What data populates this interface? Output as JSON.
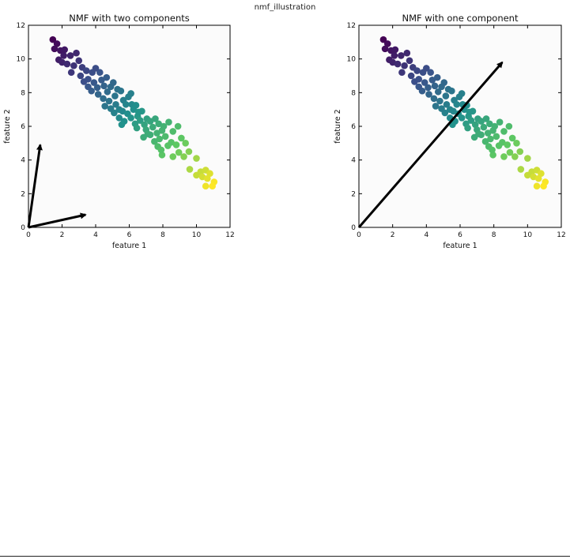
{
  "page": {
    "title": "nmf_illustration"
  },
  "chart_data": [
    {
      "type": "scatter",
      "title": "NMF with two components",
      "xlabel": "feature 1",
      "ylabel": "feature 2",
      "xlim": [
        0,
        12
      ],
      "ylim": [
        0,
        12
      ],
      "xticks": [
        "0",
        "2",
        "4",
        "6",
        "8",
        "10",
        "12"
      ],
      "yticks": [
        "0",
        "2",
        "4",
        "6",
        "8",
        "10",
        "12"
      ],
      "grid": false,
      "colormap": [
        "#440154",
        "#3b528b",
        "#21918c",
        "#5ec962",
        "#fde725"
      ],
      "components": [
        {
          "from": [
            0,
            0
          ],
          "to": [
            0.7,
            4.9
          ]
        },
        {
          "from": [
            0,
            0
          ],
          "to": [
            3.4,
            0.75
          ]
        }
      ],
      "points": [
        [
          1.45,
          11.15
        ],
        [
          1.7,
          10.9
        ],
        [
          1.55,
          10.6
        ],
        [
          1.9,
          10.5
        ],
        [
          2.1,
          10.2
        ],
        [
          1.8,
          9.95
        ],
        [
          2.0,
          9.8
        ],
        [
          2.5,
          10.2
        ],
        [
          2.85,
          10.35
        ],
        [
          2.3,
          9.7
        ],
        [
          2.7,
          9.6
        ],
        [
          3.0,
          9.9
        ],
        [
          3.2,
          9.5
        ],
        [
          2.55,
          9.2
        ],
        [
          3.45,
          9.3
        ],
        [
          3.1,
          9.0
        ],
        [
          3.8,
          9.2
        ],
        [
          3.55,
          8.8
        ],
        [
          3.9,
          8.6
        ],
        [
          4.25,
          9.2
        ],
        [
          4.0,
          9.45
        ],
        [
          3.3,
          8.65
        ],
        [
          4.35,
          8.75
        ],
        [
          4.1,
          8.3
        ],
        [
          4.5,
          8.4
        ],
        [
          4.65,
          8.9
        ],
        [
          4.15,
          7.9
        ],
        [
          4.7,
          8.05
        ],
        [
          4.9,
          8.35
        ],
        [
          5.05,
          8.6
        ],
        [
          4.45,
          7.65
        ],
        [
          4.8,
          7.5
        ],
        [
          5.15,
          7.8
        ],
        [
          5.3,
          8.2
        ],
        [
          5.5,
          8.1
        ],
        [
          5.2,
          7.3
        ],
        [
          5.65,
          7.55
        ],
        [
          5.4,
          7.0
        ],
        [
          5.8,
          7.3
        ],
        [
          5.95,
          7.75
        ],
        [
          6.15,
          7.3
        ],
        [
          5.6,
          6.9
        ],
        [
          5.9,
          6.75
        ],
        [
          6.25,
          7.0
        ],
        [
          6.4,
          7.25
        ],
        [
          5.7,
          6.3
        ],
        [
          6.1,
          6.5
        ],
        [
          6.5,
          6.6
        ],
        [
          6.75,
          6.9
        ],
        [
          5.1,
          6.8
        ],
        [
          4.9,
          7.05
        ],
        [
          5.4,
          6.5
        ],
        [
          6.35,
          6.15
        ],
        [
          6.65,
          6.35
        ],
        [
          7.05,
          6.45
        ],
        [
          6.9,
          6.1
        ],
        [
          7.25,
          6.3
        ],
        [
          7.0,
          5.8
        ],
        [
          7.4,
          5.95
        ],
        [
          7.55,
          6.45
        ],
        [
          7.75,
          6.15
        ],
        [
          7.25,
          5.5
        ],
        [
          7.65,
          5.6
        ],
        [
          7.95,
          5.75
        ],
        [
          7.8,
          5.25
        ],
        [
          8.15,
          5.4
        ],
        [
          8.05,
          6.0
        ],
        [
          8.35,
          6.25
        ],
        [
          7.5,
          5.1
        ],
        [
          8.6,
          5.7
        ],
        [
          8.9,
          6.0
        ],
        [
          8.5,
          5.05
        ],
        [
          8.8,
          4.9
        ],
        [
          9.1,
          5.3
        ],
        [
          9.35,
          5.0
        ],
        [
          9.55,
          4.5
        ],
        [
          8.95,
          4.45
        ],
        [
          9.25,
          4.2
        ],
        [
          7.7,
          4.8
        ],
        [
          7.95,
          4.3
        ],
        [
          8.6,
          4.2
        ],
        [
          10.0,
          4.1
        ],
        [
          10.25,
          3.3
        ],
        [
          10.0,
          3.1
        ],
        [
          10.55,
          3.4
        ],
        [
          10.35,
          3.0
        ],
        [
          10.8,
          3.2
        ],
        [
          10.65,
          2.9
        ],
        [
          11.05,
          2.7
        ],
        [
          10.95,
          2.45
        ],
        [
          10.55,
          2.45
        ],
        [
          9.6,
          3.45
        ],
        [
          6.1,
          7.95
        ],
        [
          4.55,
          7.2
        ],
        [
          3.75,
          8.1
        ],
        [
          6.45,
          5.9
        ],
        [
          7.1,
          5.55
        ],
        [
          8.3,
          4.85
        ],
        [
          5.55,
          6.1
        ],
        [
          6.85,
          5.35
        ],
        [
          7.9,
          4.6
        ],
        [
          6.55,
          6.85
        ],
        [
          2.15,
          10.55
        ],
        [
          3.55,
          8.35
        ]
      ]
    },
    {
      "type": "scatter",
      "title": "NMF with one component",
      "xlabel": "feature 1",
      "ylabel": "feature 2",
      "xlim": [
        0,
        12
      ],
      "ylim": [
        0,
        12
      ],
      "xticks": [
        "0",
        "2",
        "4",
        "6",
        "8",
        "10",
        "12"
      ],
      "yticks": [
        "0",
        "2",
        "4",
        "6",
        "8",
        "10",
        "12"
      ],
      "grid": false,
      "colormap": [
        "#440154",
        "#3b528b",
        "#21918c",
        "#5ec962",
        "#fde725"
      ],
      "components": [
        {
          "from": [
            0,
            0
          ],
          "to": [
            8.5,
            9.8
          ]
        }
      ],
      "points": [
        [
          1.45,
          11.15
        ],
        [
          1.7,
          10.9
        ],
        [
          1.55,
          10.6
        ],
        [
          1.9,
          10.5
        ],
        [
          2.1,
          10.2
        ],
        [
          1.8,
          9.95
        ],
        [
          2.0,
          9.8
        ],
        [
          2.5,
          10.2
        ],
        [
          2.85,
          10.35
        ],
        [
          2.3,
          9.7
        ],
        [
          2.7,
          9.6
        ],
        [
          3.0,
          9.9
        ],
        [
          3.2,
          9.5
        ],
        [
          2.55,
          9.2
        ],
        [
          3.45,
          9.3
        ],
        [
          3.1,
          9.0
        ],
        [
          3.8,
          9.2
        ],
        [
          3.55,
          8.8
        ],
        [
          3.9,
          8.6
        ],
        [
          4.25,
          9.2
        ],
        [
          4.0,
          9.45
        ],
        [
          3.3,
          8.65
        ],
        [
          4.35,
          8.75
        ],
        [
          4.1,
          8.3
        ],
        [
          4.5,
          8.4
        ],
        [
          4.65,
          8.9
        ],
        [
          4.15,
          7.9
        ],
        [
          4.7,
          8.05
        ],
        [
          4.9,
          8.35
        ],
        [
          5.05,
          8.6
        ],
        [
          4.45,
          7.65
        ],
        [
          4.8,
          7.5
        ],
        [
          5.15,
          7.8
        ],
        [
          5.3,
          8.2
        ],
        [
          5.5,
          8.1
        ],
        [
          5.2,
          7.3
        ],
        [
          5.65,
          7.55
        ],
        [
          5.4,
          7.0
        ],
        [
          5.8,
          7.3
        ],
        [
          5.95,
          7.75
        ],
        [
          6.15,
          7.3
        ],
        [
          5.6,
          6.9
        ],
        [
          5.9,
          6.75
        ],
        [
          6.25,
          7.0
        ],
        [
          6.4,
          7.25
        ],
        [
          5.7,
          6.3
        ],
        [
          6.1,
          6.5
        ],
        [
          6.5,
          6.6
        ],
        [
          6.75,
          6.9
        ],
        [
          5.1,
          6.8
        ],
        [
          4.9,
          7.05
        ],
        [
          5.4,
          6.5
        ],
        [
          6.35,
          6.15
        ],
        [
          6.65,
          6.35
        ],
        [
          7.05,
          6.45
        ],
        [
          6.9,
          6.1
        ],
        [
          7.25,
          6.3
        ],
        [
          7.0,
          5.8
        ],
        [
          7.4,
          5.95
        ],
        [
          7.55,
          6.45
        ],
        [
          7.75,
          6.15
        ],
        [
          7.25,
          5.5
        ],
        [
          7.65,
          5.6
        ],
        [
          7.95,
          5.75
        ],
        [
          7.8,
          5.25
        ],
        [
          8.15,
          5.4
        ],
        [
          8.05,
          6.0
        ],
        [
          8.35,
          6.25
        ],
        [
          7.5,
          5.1
        ],
        [
          8.6,
          5.7
        ],
        [
          8.9,
          6.0
        ],
        [
          8.5,
          5.05
        ],
        [
          8.8,
          4.9
        ],
        [
          9.1,
          5.3
        ],
        [
          9.35,
          5.0
        ],
        [
          9.55,
          4.5
        ],
        [
          8.95,
          4.45
        ],
        [
          9.25,
          4.2
        ],
        [
          7.7,
          4.8
        ],
        [
          7.95,
          4.3
        ],
        [
          8.6,
          4.2
        ],
        [
          10.0,
          4.1
        ],
        [
          10.25,
          3.3
        ],
        [
          10.0,
          3.1
        ],
        [
          10.55,
          3.4
        ],
        [
          10.35,
          3.0
        ],
        [
          10.8,
          3.2
        ],
        [
          10.65,
          2.9
        ],
        [
          11.05,
          2.7
        ],
        [
          10.95,
          2.45
        ],
        [
          10.55,
          2.45
        ],
        [
          9.6,
          3.45
        ],
        [
          6.1,
          7.95
        ],
        [
          4.55,
          7.2
        ],
        [
          3.75,
          8.1
        ],
        [
          6.45,
          5.9
        ],
        [
          7.1,
          5.55
        ],
        [
          8.3,
          4.85
        ],
        [
          5.55,
          6.1
        ],
        [
          6.85,
          5.35
        ],
        [
          7.9,
          4.6
        ],
        [
          6.55,
          6.85
        ],
        [
          2.15,
          10.55
        ],
        [
          3.55,
          8.35
        ]
      ]
    }
  ]
}
